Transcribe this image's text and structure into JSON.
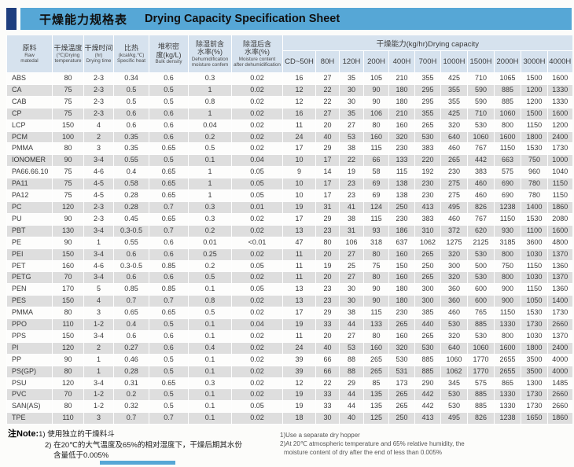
{
  "title": {
    "zh": "干燥能力规格表",
    "en": "Drying Capacity Specification Sheet"
  },
  "colors": {
    "title_bar": "#56a7d6",
    "accent_block": "#1e3e7e",
    "header_bg": "#d6e2ee",
    "stripe": "#dedede"
  },
  "table": {
    "columns": [
      {
        "zh": [
          "原料"
        ],
        "en": [
          "Raw",
          "matedal"
        ]
      },
      {
        "zh": [
          "干燥温度"
        ],
        "en": [
          "(℃)Drying",
          "temperature"
        ]
      },
      {
        "zh": [
          "干燥时间"
        ],
        "en": [
          "(hr)",
          "Drying time"
        ]
      },
      {
        "zh": [
          "比热"
        ],
        "en": [
          "(kcal/kg.℃)",
          "Specific heat"
        ]
      },
      {
        "zh": [
          "堆积密",
          "度(kg/L)"
        ],
        "en": [
          "Bulk density"
        ]
      },
      {
        "zh": [
          "除湿前含",
          "水率(%)"
        ],
        "en": [
          "Dehumidification",
          "moisture confem"
        ]
      },
      {
        "zh": [
          "除湿后含",
          "水率(%)"
        ],
        "en": [
          "Moisture content",
          "after dehumidification"
        ]
      }
    ],
    "capacity_group": "干燥能力(kg/hr)Drying capacity",
    "capacity_models": [
      "CD~50H",
      "80H",
      "120H",
      "200H",
      "400H",
      "700H",
      "1000H",
      "1500H",
      "2000H",
      "3000H",
      "4000H"
    ],
    "rows": [
      [
        "ABS",
        "80",
        "2-3",
        "0.34",
        "0.6",
        "0.3",
        "0.02",
        "16",
        "27",
        "35",
        "105",
        "210",
        "355",
        "425",
        "710",
        "1065",
        "1500",
        "1600"
      ],
      [
        "CA",
        "75",
        "2-3",
        "0.5",
        "0.5",
        "1",
        "0.02",
        "12",
        "22",
        "30",
        "90",
        "180",
        "295",
        "355",
        "590",
        "885",
        "1200",
        "1330"
      ],
      [
        "CAB",
        "75",
        "2-3",
        "0.5",
        "0.5",
        "0.8",
        "0.02",
        "12",
        "22",
        "30",
        "90",
        "180",
        "295",
        "355",
        "590",
        "885",
        "1200",
        "1330"
      ],
      [
        "CP",
        "75",
        "2-3",
        "0.6",
        "0.6",
        "1",
        "0.02",
        "16",
        "27",
        "35",
        "106",
        "210",
        "355",
        "425",
        "710",
        "1060",
        "1500",
        "1600"
      ],
      [
        "LCP",
        "150",
        "4",
        "0.6",
        "0.6",
        "0.04",
        "0.02",
        "11",
        "20",
        "27",
        "80",
        "160",
        "265",
        "320",
        "530",
        "800",
        "1150",
        "1200"
      ],
      [
        "PCM",
        "100",
        "2",
        "0.35",
        "0.6",
        "0.2",
        "0.02",
        "24",
        "40",
        "53",
        "160",
        "320",
        "530",
        "640",
        "1060",
        "1600",
        "1800",
        "2400"
      ],
      [
        "PMMA",
        "80",
        "3",
        "0.35",
        "0.65",
        "0.5",
        "0.02",
        "17",
        "29",
        "38",
        "115",
        "230",
        "383",
        "460",
        "767",
        "1150",
        "1530",
        "1730"
      ],
      [
        "IONOMER",
        "90",
        "3-4",
        "0.55",
        "0.5",
        "0.1",
        "0.04",
        "10",
        "17",
        "22",
        "66",
        "133",
        "220",
        "265",
        "442",
        "663",
        "750",
        "1000"
      ],
      [
        "PA66.66.10",
        "75",
        "4-6",
        "0.4",
        "0.65",
        "1",
        "0.05",
        "9",
        "14",
        "19",
        "58",
        "115",
        "192",
        "230",
        "383",
        "575",
        "960",
        "1040"
      ],
      [
        "PA11",
        "75",
        "4-5",
        "0.58",
        "0.65",
        "1",
        "0.05",
        "10",
        "17",
        "23",
        "69",
        "138",
        "230",
        "275",
        "460",
        "690",
        "780",
        "1150"
      ],
      [
        "PA12",
        "75",
        "4-5",
        "0.28",
        "0.65",
        "1",
        "0.05",
        "10",
        "17",
        "23",
        "69",
        "138",
        "230",
        "275",
        "460",
        "690",
        "780",
        "1150"
      ],
      [
        "PC",
        "120",
        "2-3",
        "0.28",
        "0.7",
        "0.3",
        "0.01",
        "19",
        "31",
        "41",
        "124",
        "250",
        "413",
        "495",
        "826",
        "1238",
        "1400",
        "1860"
      ],
      [
        "PU",
        "90",
        "2-3",
        "0.45",
        "0.65",
        "0.3",
        "0.02",
        "17",
        "29",
        "38",
        "115",
        "230",
        "383",
        "460",
        "767",
        "1150",
        "1530",
        "2080"
      ],
      [
        "PBT",
        "130",
        "3-4",
        "0.3-0.5",
        "0.7",
        "0.2",
        "0.02",
        "13",
        "23",
        "31",
        "93",
        "186",
        "310",
        "372",
        "620",
        "930",
        "1100",
        "1600"
      ],
      [
        "PE",
        "90",
        "1",
        "0.55",
        "0.6",
        "0.01",
        "<0.01",
        "47",
        "80",
        "106",
        "318",
        "637",
        "1062",
        "1275",
        "2125",
        "3185",
        "3600",
        "4800"
      ],
      [
        "PEI",
        "150",
        "3-4",
        "0.6",
        "0.6",
        "0.25",
        "0.02",
        "11",
        "20",
        "27",
        "80",
        "160",
        "265",
        "320",
        "530",
        "800",
        "1030",
        "1370"
      ],
      [
        "PET",
        "160",
        "4-6",
        "0.3-0.5",
        "0.85",
        "0.2",
        "0.05",
        "11",
        "19",
        "25",
        "75",
        "150",
        "250",
        "300",
        "500",
        "750",
        "1150",
        "1360"
      ],
      [
        "PETG",
        "70",
        "3-4",
        "0.6",
        "0.6",
        "0.5",
        "0.02",
        "11",
        "20",
        "27",
        "80",
        "160",
        "265",
        "320",
        "530",
        "800",
        "1030",
        "1370"
      ],
      [
        "PEN",
        "170",
        "5",
        "0.85",
        "0.85",
        "0.1",
        "0.05",
        "13",
        "23",
        "30",
        "90",
        "180",
        "300",
        "360",
        "600",
        "900",
        "1150",
        "1360"
      ],
      [
        "PES",
        "150",
        "4",
        "0.7",
        "0.7",
        "0.8",
        "0.02",
        "13",
        "23",
        "30",
        "90",
        "180",
        "300",
        "360",
        "600",
        "900",
        "1050",
        "1400"
      ],
      [
        "PMMA",
        "80",
        "3",
        "0.65",
        "0.65",
        "0.5",
        "0.02",
        "17",
        "29",
        "38",
        "115",
        "230",
        "385",
        "460",
        "765",
        "1150",
        "1530",
        "1730"
      ],
      [
        "PPO",
        "110",
        "1-2",
        "0.4",
        "0.5",
        "0.1",
        "0.04",
        "19",
        "33",
        "44",
        "133",
        "265",
        "440",
        "530",
        "885",
        "1330",
        "1730",
        "2660"
      ],
      [
        "PPS",
        "150",
        "3-4",
        "0.6",
        "0.6",
        "0.1",
        "0.02",
        "11",
        "20",
        "27",
        "80",
        "160",
        "265",
        "320",
        "530",
        "800",
        "1030",
        "1370"
      ],
      [
        "PI",
        "120",
        "2",
        "0.27",
        "0.6",
        "0.4",
        "0.02",
        "24",
        "40",
        "53",
        "160",
        "320",
        "530",
        "640",
        "1060",
        "1600",
        "1800",
        "2400"
      ],
      [
        "PP",
        "90",
        "1",
        "0.46",
        "0.5",
        "0.1",
        "0.02",
        "39",
        "66",
        "88",
        "265",
        "530",
        "885",
        "1060",
        "1770",
        "2655",
        "3500",
        "4000"
      ],
      [
        "PS(GP)",
        "80",
        "1",
        "0.28",
        "0.5",
        "0.1",
        "0.02",
        "39",
        "66",
        "88",
        "265",
        "531",
        "885",
        "1062",
        "1770",
        "2655",
        "3500",
        "4000"
      ],
      [
        "PSU",
        "120",
        "3-4",
        "0.31",
        "0.65",
        "0.3",
        "0.02",
        "12",
        "22",
        "29",
        "85",
        "173",
        "290",
        "345",
        "575",
        "865",
        "1300",
        "1485"
      ],
      [
        "PVC",
        "70",
        "1-2",
        "0.2",
        "0.5",
        "0.1",
        "0.02",
        "19",
        "33",
        "44",
        "135",
        "265",
        "442",
        "530",
        "885",
        "1330",
        "1730",
        "2660"
      ],
      [
        "SAN(AS)",
        "80",
        "1-2",
        "0.32",
        "0.5",
        "0.1",
        "0.05",
        "19",
        "33",
        "44",
        "135",
        "265",
        "442",
        "530",
        "885",
        "1330",
        "1730",
        "2660"
      ],
      [
        "TPE",
        "110",
        "3",
        "0.7",
        "0.7",
        "0.1",
        "0.02",
        "18",
        "30",
        "40",
        "125",
        "250",
        "413",
        "495",
        "826",
        "1238",
        "1650",
        "1860"
      ]
    ]
  },
  "notes": {
    "label": "注Note:",
    "zh": [
      "1) 使用独立的干燥料斗",
      "2) 在20℃的大气温度及65%的相对湿度下，干燥后期其水份",
      "含量低于0.005%"
    ],
    "en": [
      "1)Use a separate dry hopper",
      "2)At 20℃ atmospheric temperature and 65% relative humidity, the",
      "moisture content of dry after the end of less than 0.005%"
    ]
  }
}
